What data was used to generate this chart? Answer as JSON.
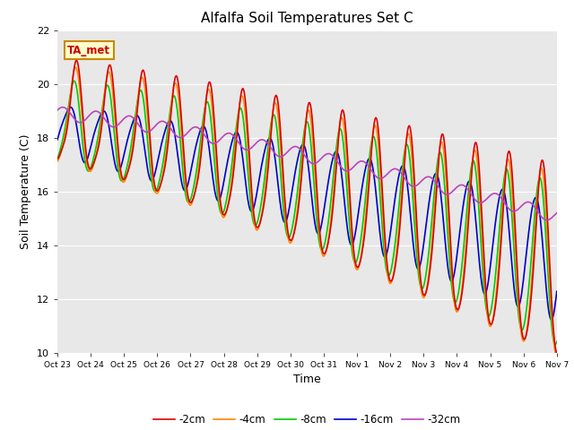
{
  "title": "Alfalfa Soil Temperatures Set C",
  "xlabel": "Time",
  "ylabel": "Soil Temperature (C)",
  "ylim": [
    10,
    22
  ],
  "yticks": [
    10,
    12,
    14,
    16,
    18,
    20,
    22
  ],
  "annotation": "TA_met",
  "bg_color": "#e8e8e8",
  "fig_color": "#ffffff",
  "series": {
    "-2cm": {
      "color": "#dd0000",
      "linewidth": 1.2
    },
    "-4cm": {
      "color": "#ff8800",
      "linewidth": 1.2
    },
    "-8cm": {
      "color": "#00cc00",
      "linewidth": 1.2
    },
    "-16cm": {
      "color": "#0000cc",
      "linewidth": 1.2
    },
    "-32cm": {
      "color": "#bb44bb",
      "linewidth": 1.2
    }
  },
  "xtick_labels": [
    "Oct 23",
    "Oct 24",
    "Oct 25",
    "Oct 26",
    "Oct 27",
    "Oct 28",
    "Oct 29",
    "Oct 30",
    "Oct 31",
    "Nov 1",
    "Nov 2",
    "Nov 3",
    "Nov 4",
    "Nov 5",
    "Nov 6",
    "Nov 7"
  ],
  "num_points": 672
}
